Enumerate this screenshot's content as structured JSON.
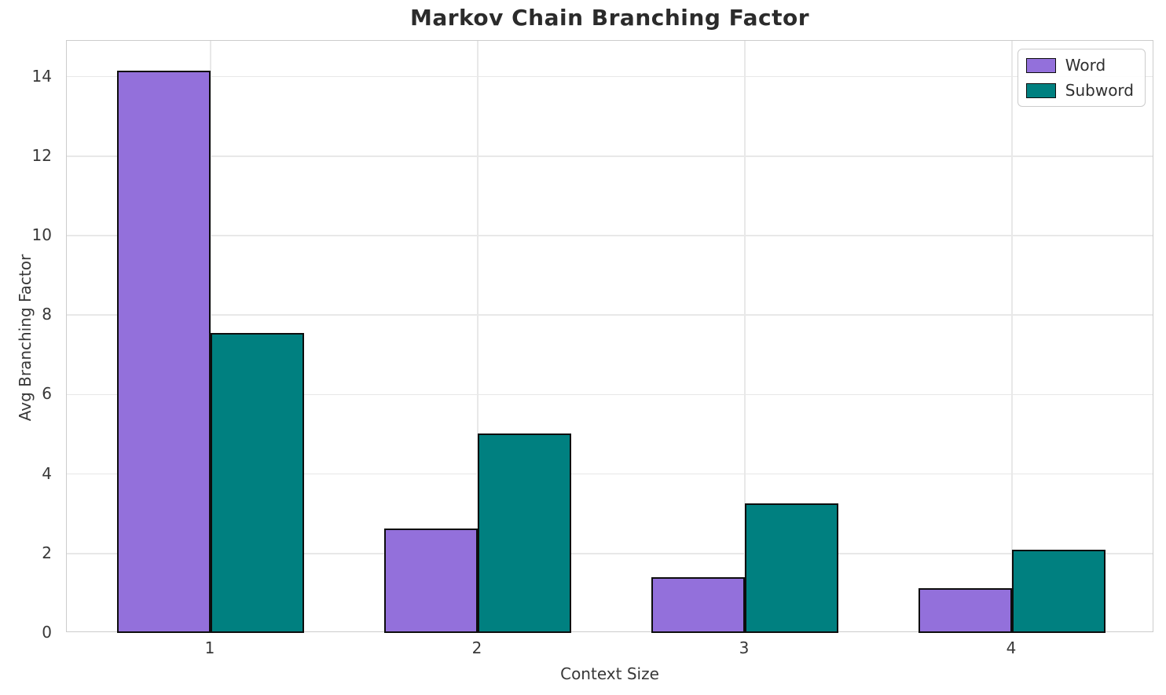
{
  "chart_data": {
    "type": "bar",
    "title": "Markov Chain Branching Factor",
    "xlabel": "Context Size",
    "ylabel": "Avg Branching Factor",
    "categories": [
      "1",
      "2",
      "3",
      "4"
    ],
    "series": [
      {
        "name": "Word",
        "color": "#9370DB",
        "values": [
          14.15,
          2.63,
          1.4,
          1.12
        ]
      },
      {
        "name": "Subword",
        "color": "#008080",
        "values": [
          7.55,
          5.02,
          3.27,
          2.1
        ]
      }
    ],
    "yticks": [
      0,
      2,
      4,
      6,
      8,
      10,
      12,
      14
    ],
    "ylim": [
      0,
      14.9
    ],
    "grid": true,
    "legend_position": "upper right",
    "bar_edge_color": "#0d0d0d"
  }
}
